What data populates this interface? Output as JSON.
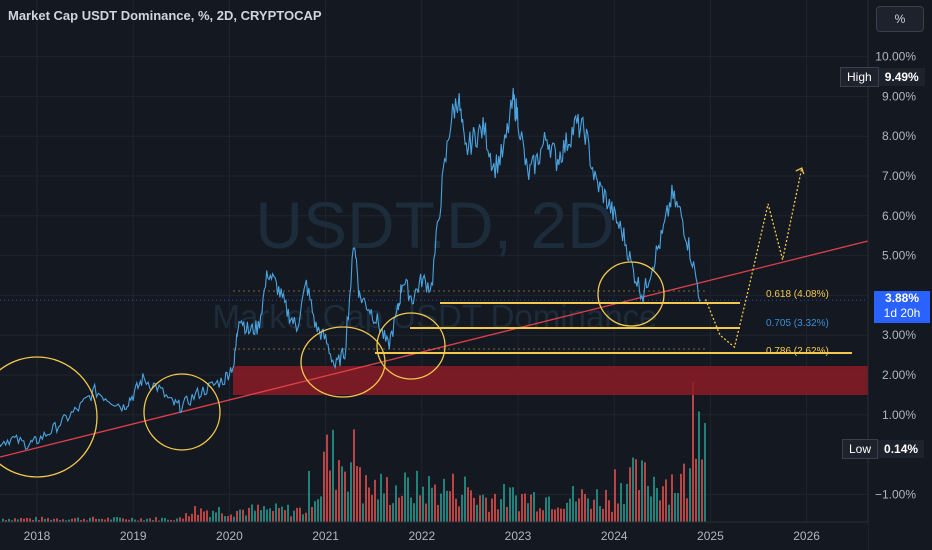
{
  "header": {
    "title": "Market Cap USDT Dominance, %, 2D, CRYPTOCAP",
    "unit_button": "%"
  },
  "watermark": {
    "symbol": "USDT.D, 2D",
    "name": "Market Cap USDT Dominance"
  },
  "badges": {
    "high_label": "High",
    "high_value": "9.49%",
    "low_label": "Low",
    "low_value": "0.14%",
    "last_value": "3.88%",
    "countdown": "1d 20h"
  },
  "fib_levels": [
    {
      "ratio": "0.618",
      "text": "0.618 (4.08%)",
      "value": 4.08,
      "color": "#f2c94c"
    },
    {
      "ratio": "0.705",
      "text": "0.705 (3.32%)",
      "value": 3.32,
      "color": "#3a8fd9"
    },
    {
      "ratio": "0.786",
      "text": "0.786 (2.62%)",
      "value": 2.62,
      "color": "#f2c94c"
    }
  ],
  "colors": {
    "background": "#141821",
    "price_line": "#4aa3df",
    "trendline": "#e0404a",
    "support_zone": "#8b1c24",
    "circles": "#f2c94c",
    "volume_up": "#26a69a",
    "volume_down": "#ef5350",
    "projection": "#f2c94c"
  },
  "chart_data": {
    "type": "line",
    "xlabel": "",
    "ylabel": "",
    "y_ticks": [
      "10.00%",
      "9.00%",
      "8.00%",
      "7.00%",
      "6.00%",
      "5.00%",
      "4.00%",
      "3.00%",
      "2.00%",
      "1.00%",
      "−1.00%"
    ],
    "y_tick_values": [
      10,
      9,
      8,
      7,
      6,
      5,
      4,
      3,
      2,
      1,
      -1
    ],
    "x_ticks": [
      "2018",
      "2019",
      "2020",
      "2021",
      "2022",
      "2023",
      "2024",
      "2025",
      "2026"
    ],
    "x_tick_values": [
      2018,
      2019,
      2020,
      2021,
      2022,
      2023,
      2024,
      2025,
      2026
    ],
    "xlim": [
      2017.6,
      2026.75
    ],
    "ylim": [
      -1.5,
      11.2
    ],
    "grid": true,
    "series": [
      {
        "x": [
          2017.6,
          2017.75,
          2017.9,
          2018.0,
          2018.15,
          2018.3,
          2018.45,
          2018.6,
          2018.75,
          2018.9,
          2019.0,
          2019.1,
          2019.25,
          2019.4,
          2019.5,
          2019.65,
          2019.8,
          2019.95,
          2020.05,
          2020.1,
          2020.2,
          2020.3,
          2020.4,
          2020.5,
          2020.6,
          2020.7,
          2020.8,
          2020.9,
          2021.0,
          2021.1,
          2021.2,
          2021.3,
          2021.35,
          2021.45,
          2021.55,
          2021.65,
          2021.75,
          2021.8,
          2021.9,
          2022.0,
          2022.1,
          2022.2,
          2022.3,
          2022.38,
          2022.45,
          2022.55,
          2022.65,
          2022.75,
          2022.85,
          2022.95,
          2023.0,
          2023.1,
          2023.2,
          2023.3,
          2023.4,
          2023.5,
          2023.6,
          2023.7,
          2023.8,
          2023.9,
          2024.0,
          2024.1,
          2024.2,
          2024.3,
          2024.4,
          2024.5,
          2024.6,
          2024.7,
          2024.8,
          2024.9
        ],
        "values": [
          0.3,
          0.4,
          0.25,
          0.35,
          0.6,
          0.9,
          1.2,
          1.6,
          1.4,
          1.2,
          1.5,
          1.9,
          1.7,
          1.3,
          1.2,
          1.5,
          1.7,
          1.9,
          2.3,
          3.5,
          3.1,
          3.2,
          4.6,
          4.2,
          3.6,
          3.2,
          4.3,
          3.2,
          2.9,
          2.2,
          2.6,
          5.4,
          4.0,
          3.7,
          3.3,
          2.7,
          3.6,
          4.4,
          3.9,
          4.4,
          4.2,
          6.5,
          8.4,
          9.0,
          7.6,
          8.0,
          8.2,
          7.2,
          7.6,
          8.9,
          8.5,
          7.0,
          7.4,
          8.0,
          7.4,
          7.8,
          8.3,
          8.1,
          6.9,
          6.5,
          6.0,
          5.5,
          4.6,
          4.0,
          4.8,
          5.5,
          6.5,
          6.0,
          5.0,
          3.88
        ]
      },
      {
        "name": "",
        "x": [
          2024.95,
          2025.1,
          2025.25,
          2025.4,
          2025.6,
          2025.75,
          2025.95
        ],
        "values": [
          3.9,
          3.0,
          2.7,
          4.2,
          6.3,
          4.9,
          7.2
        ]
      }
    ]
  }
}
